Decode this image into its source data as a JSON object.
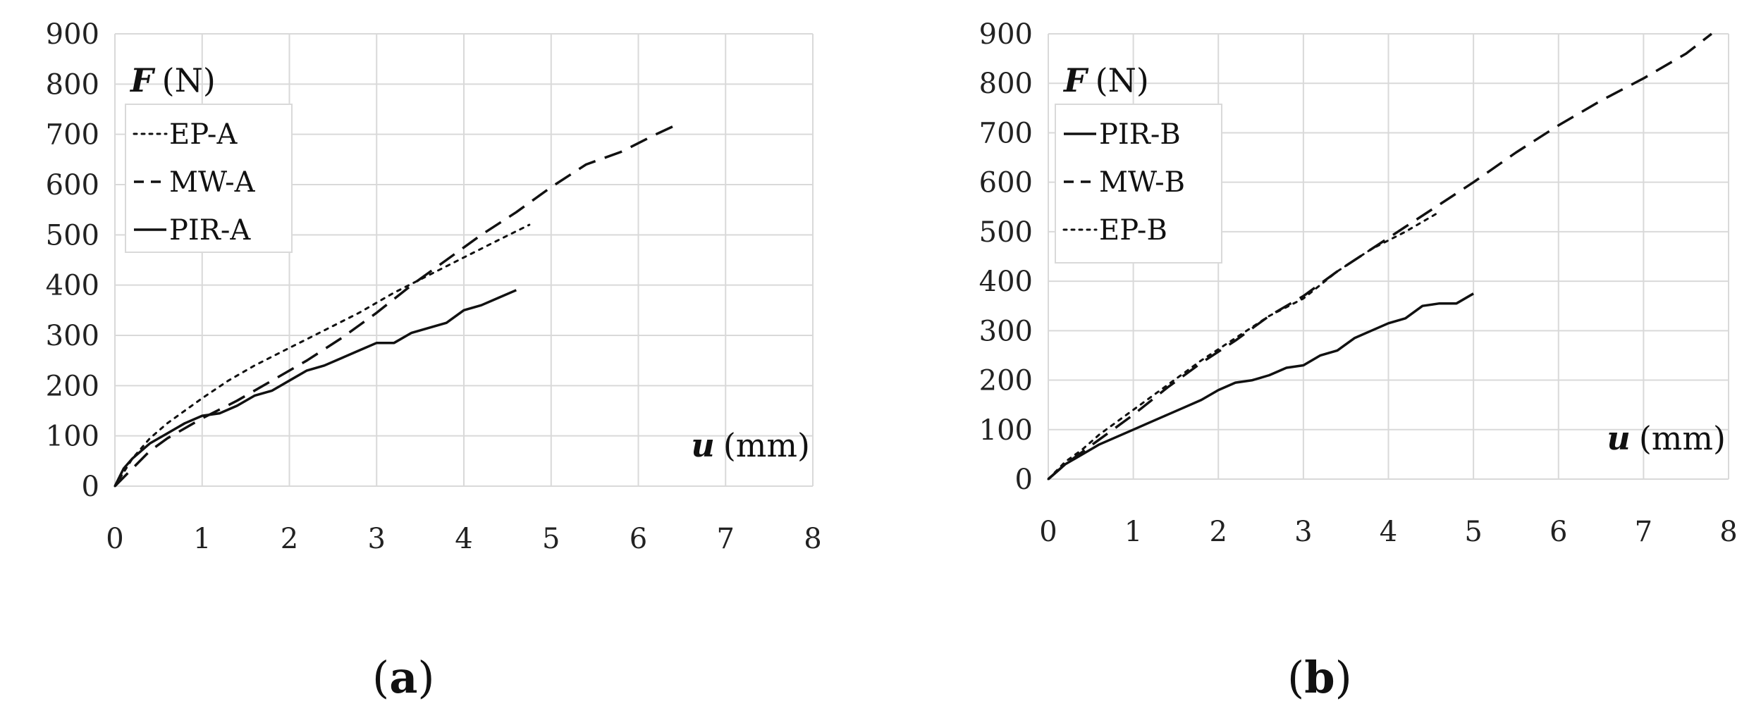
{
  "chart_data": [
    {
      "type": "line",
      "panel_label": "a",
      "ylabel_symbol": "F",
      "ylabel_unit": "(N)",
      "xlabel_symbol": "u",
      "xlabel_unit": "(mm)",
      "xlim": [
        0,
        8
      ],
      "ylim": [
        0,
        900
      ],
      "xticks": [
        0,
        1,
        2,
        3,
        4,
        5,
        6,
        7,
        8
      ],
      "yticks": [
        0,
        100,
        200,
        300,
        400,
        500,
        600,
        700,
        800,
        900
      ],
      "grid": true,
      "legend_position": "top-left",
      "series": [
        {
          "name": "EP-A",
          "style": "dotted",
          "x": [
            0,
            0.2,
            0.4,
            0.6,
            0.8,
            1.0,
            1.3,
            1.6,
            2.0,
            2.4,
            2.8,
            3.2,
            3.6,
            4.0,
            4.4,
            4.75
          ],
          "y": [
            0,
            55,
            95,
            125,
            150,
            175,
            210,
            240,
            275,
            310,
            345,
            385,
            420,
            455,
            490,
            520
          ]
        },
        {
          "name": "MW-A",
          "style": "dashed",
          "x": [
            0,
            0.2,
            0.4,
            0.6,
            0.8,
            1.0,
            1.4,
            1.8,
            2.2,
            2.6,
            3.0,
            3.4,
            3.8,
            4.2,
            4.6,
            5.0,
            5.4,
            5.8,
            6.2,
            6.45
          ],
          "y": [
            0,
            35,
            70,
            95,
            115,
            135,
            170,
            210,
            250,
            295,
            345,
            400,
            450,
            500,
            545,
            595,
            640,
            665,
            700,
            720
          ]
        },
        {
          "name": "PIR-A",
          "style": "solid",
          "x": [
            0,
            0.1,
            0.2,
            0.4,
            0.6,
            0.8,
            1.0,
            1.2,
            1.4,
            1.6,
            1.8,
            2.0,
            2.2,
            2.4,
            2.6,
            2.8,
            3.0,
            3.2,
            3.4,
            3.6,
            3.8,
            4.0,
            4.2,
            4.4,
            4.6
          ],
          "y": [
            0,
            35,
            55,
            85,
            105,
            125,
            140,
            145,
            160,
            180,
            190,
            210,
            230,
            240,
            255,
            270,
            285,
            285,
            305,
            315,
            325,
            350,
            360,
            375,
            390
          ]
        }
      ]
    },
    {
      "type": "line",
      "panel_label": "b",
      "ylabel_symbol": "F",
      "ylabel_unit": "(N)",
      "xlabel_symbol": "u",
      "xlabel_unit": "(mm)",
      "xlim": [
        0,
        8
      ],
      "ylim": [
        0,
        900
      ],
      "xticks": [
        0,
        1,
        2,
        3,
        4,
        5,
        6,
        7,
        8
      ],
      "yticks": [
        0,
        100,
        200,
        300,
        400,
        500,
        600,
        700,
        800,
        900
      ],
      "grid": true,
      "legend_position": "top-left",
      "series": [
        {
          "name": "PIR-B",
          "style": "solid",
          "x": [
            0,
            0.2,
            0.4,
            0.6,
            0.8,
            1.0,
            1.2,
            1.4,
            1.6,
            1.8,
            2.0,
            2.2,
            2.4,
            2.6,
            2.8,
            3.0,
            3.2,
            3.4,
            3.6,
            3.8,
            4.0,
            4.2,
            4.4,
            4.6,
            4.8,
            5.0
          ],
          "y": [
            0,
            30,
            50,
            70,
            85,
            100,
            115,
            130,
            145,
            160,
            180,
            195,
            200,
            210,
            225,
            230,
            250,
            260,
            285,
            300,
            315,
            325,
            350,
            355,
            355,
            375
          ]
        },
        {
          "name": "MW-B",
          "style": "dashed",
          "x": [
            0,
            0.2,
            0.4,
            0.6,
            0.8,
            1.0,
            1.4,
            1.8,
            2.2,
            2.6,
            3.0,
            3.4,
            3.8,
            4.2,
            4.6,
            5.0,
            5.5,
            6.0,
            6.5,
            7.0,
            7.5,
            7.8
          ],
          "y": [
            0,
            30,
            55,
            80,
            105,
            130,
            185,
            235,
            280,
            330,
            370,
            420,
            465,
            510,
            555,
            600,
            660,
            715,
            765,
            810,
            860,
            900
          ]
        },
        {
          "name": "EP-B",
          "style": "dotted",
          "x": [
            0,
            0.2,
            0.4,
            0.6,
            0.8,
            1.0,
            1.4,
            1.8,
            2.2,
            2.6,
            3.0,
            3.4,
            3.8,
            4.2,
            4.6
          ],
          "y": [
            0,
            35,
            60,
            90,
            115,
            140,
            190,
            240,
            285,
            330,
            365,
            420,
            465,
            500,
            540
          ]
        }
      ]
    }
  ]
}
